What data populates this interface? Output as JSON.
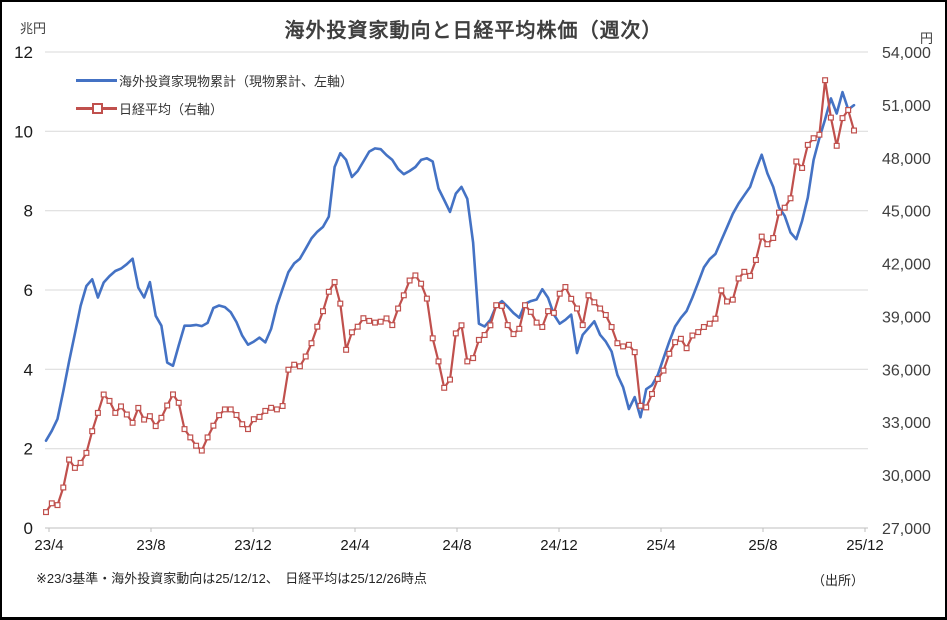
{
  "title": "海外投資家動向と日経平均株価（週次）",
  "left_axis": {
    "unit": "兆円",
    "tick_labels": [
      "12",
      "10",
      "8",
      "6",
      "4",
      "2",
      "0"
    ],
    "min": 0,
    "max": 12
  },
  "right_axis": {
    "unit": "円",
    "tick_labels": [
      "54,000",
      "51,000",
      "48,000",
      "45,000",
      "42,000",
      "39,000",
      "36,000",
      "33,000",
      "30,000",
      "27,000"
    ],
    "min": 27000,
    "max": 54000
  },
  "x_axis": {
    "tick_labels": [
      "23/4",
      "23/8",
      "23/12",
      "24/4",
      "24/8",
      "24/12",
      "25/4",
      "25/8",
      "25/12"
    ]
  },
  "legend": {
    "items": [
      {
        "label": "海外投資家現物累計（現物累計、左軸）",
        "color": "#4472c4",
        "marker": "none"
      },
      {
        "label": "日経平均（右軸）",
        "color": "#c0504d",
        "marker": "square-hollow"
      }
    ]
  },
  "footnote": "※23/3基準・海外投資家動向は25/12/12、　日経平均は25/12/26時点",
  "source_label": "（出所）",
  "colors": {
    "foreign_line": "#4472c4",
    "nikkei_line": "#c0504d",
    "gridline": "#d9d9d9",
    "axis_line": "#bfbfbf",
    "tick_text": "#1a1a1a",
    "title_text": "#3f3f3f"
  },
  "chart_data": {
    "type": "line",
    "frequency": "weekly",
    "x_range_labels": [
      "23/4",
      "25/12"
    ],
    "grid": "horizontal",
    "legend_position": "top-left-inside",
    "left_ylim": [
      0,
      12
    ],
    "right_ylim": [
      27000,
      54000
    ],
    "series": [
      {
        "name": "海外投資家現物累計（現物累計、左軸）",
        "axis": "left",
        "unit": "兆円",
        "color": "#4472c4",
        "marker": "none",
        "values": [
          2.2,
          2.45,
          2.75,
          3.45,
          4.2,
          4.9,
          5.6,
          6.1,
          6.27,
          5.81,
          6.19,
          6.35,
          6.48,
          6.54,
          6.65,
          6.79,
          6.06,
          5.81,
          6.2,
          5.35,
          5.1,
          4.17,
          4.09,
          4.6,
          5.1,
          5.1,
          5.12,
          5.09,
          5.17,
          5.55,
          5.61,
          5.57,
          5.44,
          5.19,
          4.85,
          4.62,
          4.7,
          4.8,
          4.68,
          5.02,
          5.61,
          6.03,
          6.45,
          6.67,
          6.79,
          7.04,
          7.3,
          7.47,
          7.59,
          7.85,
          9.1,
          9.45,
          9.28,
          8.85,
          9.0,
          9.24,
          9.49,
          9.57,
          9.55,
          9.4,
          9.28,
          9.05,
          8.92,
          9.0,
          9.1,
          9.28,
          9.32,
          9.24,
          8.56,
          8.27,
          7.97,
          8.43,
          8.6,
          8.3,
          7.2,
          5.15,
          5.08,
          5.25,
          5.6,
          5.72,
          5.58,
          5.42,
          5.3,
          5.65,
          5.72,
          5.76,
          6.02,
          5.8,
          5.38,
          5.15,
          5.25,
          5.38,
          4.41,
          4.87,
          5.04,
          5.21,
          4.87,
          4.7,
          4.45,
          3.86,
          3.55,
          3.0,
          3.3,
          2.79,
          3.5,
          3.6,
          3.86,
          4.28,
          4.7,
          5.08,
          5.3,
          5.47,
          5.81,
          6.19,
          6.57,
          6.78,
          6.91,
          7.25,
          7.58,
          7.92,
          8.18,
          8.39,
          8.6,
          9.03,
          9.41,
          8.94,
          8.6,
          8.08,
          7.87,
          7.45,
          7.28,
          7.74,
          8.33,
          9.28,
          9.83,
          10.3,
          10.83,
          10.45,
          10.99,
          10.55,
          10.66
        ]
      },
      {
        "name": "日経平均（右軸）",
        "axis": "right",
        "unit": "円",
        "color": "#c0504d",
        "marker": "square-hollow",
        "values": [
          27900,
          28400,
          28300,
          29300,
          30880,
          30410,
          30690,
          31260,
          32490,
          33530,
          34570,
          34210,
          33530,
          33900,
          33440,
          32970,
          33810,
          33150,
          33340,
          32780,
          33250,
          33950,
          34580,
          34100,
          32610,
          32140,
          31670,
          31390,
          32140,
          32800,
          33400,
          33730,
          33730,
          33410,
          32890,
          32610,
          33170,
          33300,
          33640,
          33820,
          33730,
          33920,
          35980,
          36260,
          36170,
          36730,
          37480,
          38420,
          39300,
          40400,
          40950,
          39730,
          37110,
          38100,
          38420,
          38900,
          38750,
          38650,
          38700,
          38890,
          38510,
          39450,
          40200,
          41040,
          41330,
          40860,
          40010,
          37760,
          36450,
          34950,
          35420,
          38040,
          38500,
          36450,
          36640,
          37670,
          37950,
          38500,
          39640,
          39600,
          38510,
          38000,
          38300,
          39640,
          39260,
          38650,
          38400,
          39300,
          39200,
          40290,
          40670,
          40000,
          39450,
          38510,
          40200,
          39800,
          39450,
          39080,
          38400,
          37480,
          37300,
          37390,
          36970,
          33930,
          33840,
          34600,
          35450,
          35930,
          36880,
          37540,
          37730,
          37200,
          37920,
          38110,
          38400,
          38590,
          38870,
          40480,
          39850,
          39950,
          41150,
          41530,
          41300,
          42200,
          43530,
          43100,
          43450,
          44890,
          45170,
          45700,
          47790,
          47420,
          48730,
          49110,
          49310,
          52400,
          50280,
          48680,
          50250,
          50710,
          49550
        ]
      }
    ]
  }
}
